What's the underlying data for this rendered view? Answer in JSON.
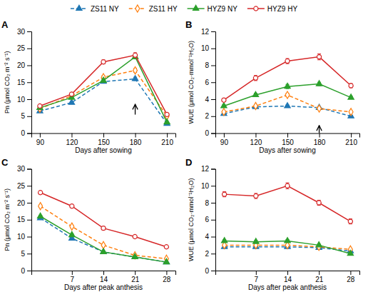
{
  "chart_data": [
    {
      "type": "line",
      "title": "A",
      "xlabel": "Days after sowing",
      "ylabel": "Pn (μmol CO₂ m⁻² s⁻¹)",
      "x": [
        90,
        120,
        150,
        180,
        210
      ],
      "xlim": [
        82,
        218
      ],
      "xticks": [
        90,
        120,
        150,
        180,
        210
      ],
      "ylim": [
        0,
        30
      ],
      "yticks": [
        0,
        5,
        10,
        15,
        20,
        25,
        30
      ],
      "grid": false,
      "legend": "top",
      "series": [
        {
          "name": "ZS11 NY",
          "marker": "triangle",
          "line_style": "dashed",
          "values": [
            6.5,
            9.0,
            15.2,
            16.0,
            2.8
          ],
          "error": [
            0.3,
            0.3,
            0.4,
            0.5,
            0.2
          ]
        },
        {
          "name": "ZS11 HY",
          "marker": "open-diamond",
          "line_style": "dashed",
          "values": [
            7.2,
            11.0,
            16.5,
            18.5,
            5.0
          ],
          "error": [
            0.3,
            0.4,
            0.5,
            0.6,
            0.3
          ]
        },
        {
          "name": "HYZ9 NY",
          "marker": "triangle",
          "line_style": "solid",
          "values": [
            7.5,
            10.5,
            15.5,
            22.5,
            3.2
          ],
          "error": [
            0.4,
            0.4,
            0.5,
            0.6,
            0.2
          ]
        },
        {
          "name": "HYZ9 HY",
          "marker": "open-circle",
          "line_style": "solid",
          "values": [
            8.0,
            11.5,
            21.0,
            23.0,
            5.5
          ],
          "error": [
            0.4,
            0.5,
            0.6,
            0.7,
            0.3
          ]
        }
      ],
      "arrow": {
        "x": 180,
        "y_tip": 8.5,
        "y_tail": 5.5
      }
    },
    {
      "type": "line",
      "title": "B",
      "xlabel": "Days after sowing",
      "ylabel": "WUE (μmol CO₂·mmol⁻¹H₂O)",
      "x": [
        90,
        120,
        150,
        180,
        210
      ],
      "xlim": [
        82,
        218
      ],
      "xticks": [
        90,
        120,
        150,
        180,
        210
      ],
      "ylim": [
        0,
        12
      ],
      "yticks": [
        0,
        2,
        4,
        6,
        8,
        10,
        12
      ],
      "grid": false,
      "series": [
        {
          "name": "ZS11 NY",
          "marker": "triangle",
          "line_style": "dashed",
          "values": [
            2.3,
            3.1,
            3.2,
            3.0,
            2.0
          ],
          "error": [
            0.1,
            0.1,
            0.12,
            0.1,
            0.1
          ]
        },
        {
          "name": "ZS11 HY",
          "marker": "open-diamond",
          "line_style": "dashed",
          "values": [
            2.5,
            3.2,
            4.5,
            2.9,
            2.5
          ],
          "error": [
            0.1,
            0.12,
            0.2,
            0.15,
            0.1
          ]
        },
        {
          "name": "HYZ9 NY",
          "marker": "triangle",
          "line_style": "solid",
          "values": [
            3.2,
            4.5,
            5.5,
            5.8,
            4.2
          ],
          "error": [
            0.15,
            0.2,
            0.25,
            0.2,
            0.15
          ]
        },
        {
          "name": "HYZ9 HY",
          "marker": "open-circle",
          "line_style": "solid",
          "values": [
            3.9,
            6.5,
            8.5,
            9.0,
            5.6
          ],
          "error": [
            0.2,
            0.3,
            0.3,
            0.35,
            0.25
          ]
        }
      ],
      "arrow": {
        "x": 180,
        "y_tip": 0.9,
        "y_tail": 0.0
      }
    },
    {
      "type": "line",
      "title": "C",
      "xlabel": "Days after peak anthesis",
      "ylabel": "Pn (μmol CO₂ m⁻² s⁻¹)",
      "x": [
        0,
        7,
        14,
        21,
        28
      ],
      "xlim": [
        -2,
        30
      ],
      "xticks": [
        7,
        14,
        21,
        28
      ],
      "ylim": [
        0,
        30
      ],
      "yticks": [
        0,
        5,
        10,
        15,
        20,
        25,
        30
      ],
      "grid": false,
      "series": [
        {
          "name": "ZS11 NY",
          "marker": "triangle",
          "line_style": "dashed",
          "values": [
            15.5,
            9.5,
            5.5,
            4.0,
            2.5
          ],
          "error": [
            0.3,
            0.3,
            0.3,
            0.3,
            0.2
          ]
        },
        {
          "name": "ZS11 HY",
          "marker": "open-diamond",
          "line_style": "dashed",
          "values": [
            19.0,
            13.0,
            7.5,
            4.5,
            3.5
          ],
          "error": [
            0.4,
            0.4,
            0.3,
            0.3,
            0.3
          ]
        },
        {
          "name": "HYZ9 NY",
          "marker": "triangle",
          "line_style": "solid",
          "values": [
            16.0,
            10.5,
            5.5,
            4.0,
            2.5
          ],
          "error": [
            0.3,
            0.4,
            0.3,
            0.3,
            0.2
          ]
        },
        {
          "name": "HYZ9 HY",
          "marker": "open-circle",
          "line_style": "solid",
          "values": [
            23.0,
            19.0,
            12.5,
            10.0,
            7.0
          ],
          "error": [
            0.5,
            0.5,
            0.5,
            0.4,
            0.4
          ]
        }
      ]
    },
    {
      "type": "line",
      "title": "D",
      "xlabel": "Days after peak anthesis",
      "ylabel": "WUE (μmol CO₂·mmol⁻¹H₂O)",
      "x": [
        0,
        7,
        14,
        21,
        28
      ],
      "xlim": [
        -2,
        30
      ],
      "xticks": [
        7,
        14,
        21,
        28
      ],
      "ylim": [
        0,
        12
      ],
      "yticks": [
        0,
        2,
        4,
        6,
        8,
        10,
        12
      ],
      "grid": false,
      "series": [
        {
          "name": "ZS11 NY",
          "marker": "triangle",
          "line_style": "dashed",
          "values": [
            2.8,
            2.8,
            2.8,
            2.7,
            2.3
          ],
          "error": [
            0.1,
            0.1,
            0.1,
            0.1,
            0.1
          ]
        },
        {
          "name": "ZS11 HY",
          "marker": "open-diamond",
          "line_style": "dashed",
          "values": [
            3.0,
            3.0,
            3.0,
            2.8,
            2.5
          ],
          "error": [
            0.1,
            0.1,
            0.1,
            0.1,
            0.1
          ]
        },
        {
          "name": "HYZ9 NY",
          "marker": "triangle",
          "line_style": "solid",
          "values": [
            3.5,
            3.4,
            3.5,
            3.0,
            2.0
          ],
          "error": [
            0.15,
            0.15,
            0.15,
            0.12,
            0.12
          ]
        },
        {
          "name": "HYZ9 HY",
          "marker": "open-circle",
          "line_style": "solid",
          "values": [
            9.0,
            8.8,
            10.0,
            8.0,
            5.8
          ],
          "error": [
            0.3,
            0.3,
            0.35,
            0.3,
            0.3
          ]
        }
      ]
    }
  ]
}
